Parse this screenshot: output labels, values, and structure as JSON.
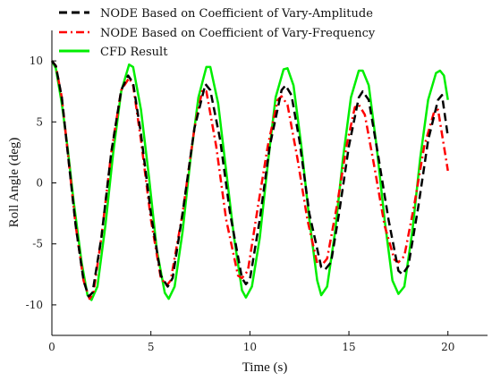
{
  "chart_data": {
    "type": "line",
    "xlabel": "Time (s)",
    "ylabel": "Roll Angle (deg)",
    "xlim": [
      0,
      22
    ],
    "ylim": [
      -12.5,
      12.5
    ],
    "xticks": [
      0,
      5,
      10,
      15,
      20
    ],
    "yticks": [
      -10,
      -5,
      0,
      5,
      10
    ],
    "legend_position": "top-left",
    "grid": false,
    "series": [
      {
        "name": "NODE Based on Coefficient of Vary-Amplitude",
        "color": "#000000",
        "style": "dash",
        "x": [
          0,
          0.2,
          0.5,
          0.8,
          1.2,
          1.6,
          1.85,
          2.05,
          2.5,
          3.0,
          3.5,
          3.85,
          4.1,
          4.5,
          5.0,
          5.5,
          5.85,
          6.1,
          6.6,
          7.2,
          7.75,
          8.0,
          8.5,
          9.0,
          9.6,
          9.8,
          10.0,
          10.5,
          11.0,
          11.6,
          11.8,
          12.1,
          12.5,
          13.0,
          13.6,
          13.8,
          14.1,
          14.5,
          15.0,
          15.5,
          15.7,
          16.0,
          16.5,
          17.0,
          17.5,
          17.7,
          18.0,
          18.5,
          19.0,
          19.5,
          19.7,
          20.0
        ],
        "y": [
          10,
          9.6,
          7.0,
          2.5,
          -3.5,
          -8.0,
          -9.3,
          -9.0,
          -4.5,
          2.5,
          7.6,
          8.8,
          8.2,
          4.0,
          -2.5,
          -7.6,
          -8.5,
          -7.8,
          -2.5,
          4.5,
          8.1,
          7.6,
          3.5,
          -2.5,
          -7.8,
          -8.3,
          -7.9,
          -3.0,
          3.0,
          7.6,
          8.0,
          7.2,
          3.5,
          -2.5,
          -6.9,
          -7.1,
          -6.5,
          -2.5,
          3.0,
          7.0,
          7.5,
          6.8,
          2.0,
          -3.0,
          -7.2,
          -7.5,
          -6.8,
          -2.0,
          3.5,
          6.8,
          7.2,
          3.8
        ]
      },
      {
        "name": "NODE Based on Coefficient of Vary-Frequency",
        "color": "#ff0000",
        "style": "dashdot",
        "x": [
          0,
          0.2,
          0.5,
          0.8,
          1.2,
          1.6,
          1.9,
          2.1,
          2.5,
          3.0,
          3.5,
          3.9,
          4.1,
          4.5,
          5.0,
          5.5,
          5.8,
          6.0,
          6.6,
          7.2,
          7.6,
          7.8,
          8.3,
          8.8,
          9.4,
          9.6,
          9.9,
          10.4,
          10.9,
          11.4,
          11.6,
          11.9,
          12.4,
          12.9,
          13.4,
          13.6,
          13.9,
          14.4,
          14.9,
          15.3,
          15.5,
          15.8,
          16.3,
          16.8,
          17.3,
          17.5,
          17.8,
          18.3,
          18.8,
          19.3,
          19.5,
          20.0
        ],
        "y": [
          10,
          9.6,
          7.0,
          2.5,
          -3.5,
          -8.0,
          -9.5,
          -9.0,
          -4.5,
          2.5,
          7.6,
          8.6,
          8.0,
          3.5,
          -3.0,
          -7.8,
          -8.4,
          -8.0,
          -2.5,
          4.5,
          7.6,
          7.5,
          3.0,
          -3.0,
          -7.6,
          -7.8,
          -7.2,
          -2.0,
          3.0,
          6.8,
          7.1,
          6.4,
          2.0,
          -3.0,
          -6.6,
          -6.8,
          -6.2,
          -1.8,
          3.2,
          6.2,
          6.4,
          5.6,
          1.2,
          -3.5,
          -6.3,
          -6.5,
          -6.0,
          -1.8,
          3.0,
          5.8,
          6.0,
          1.0
        ]
      },
      {
        "name": "CFD Result",
        "color": "#00ee00",
        "style": "solid",
        "x": [
          0,
          0.2,
          0.5,
          0.8,
          1.1,
          1.5,
          1.8,
          2.0,
          2.3,
          2.7,
          3.1,
          3.5,
          3.9,
          4.1,
          4.5,
          4.9,
          5.3,
          5.7,
          5.9,
          6.2,
          6.6,
          7.0,
          7.4,
          7.8,
          8.0,
          8.4,
          8.8,
          9.2,
          9.6,
          9.8,
          10.1,
          10.5,
          10.9,
          11.3,
          11.7,
          11.9,
          12.2,
          12.6,
          13.0,
          13.4,
          13.6,
          13.9,
          14.3,
          14.7,
          15.1,
          15.5,
          15.7,
          16.0,
          16.4,
          16.8,
          17.2,
          17.5,
          17.8,
          18.2,
          18.6,
          19.0,
          19.4,
          19.6,
          19.8,
          20.0
        ],
        "y": [
          10,
          9.4,
          6.5,
          2.8,
          -1.5,
          -6.5,
          -9.2,
          -9.6,
          -8.5,
          -3.5,
          2.5,
          7.5,
          9.7,
          9.5,
          6.0,
          0.5,
          -5.5,
          -9.0,
          -9.5,
          -8.5,
          -4.0,
          2.0,
          7.0,
          9.5,
          9.5,
          6.5,
          1.0,
          -4.5,
          -8.8,
          -9.4,
          -8.5,
          -4.5,
          1.5,
          7.0,
          9.3,
          9.4,
          8.0,
          3.0,
          -3.0,
          -8.0,
          -9.2,
          -8.5,
          -4.0,
          2.0,
          7.0,
          9.2,
          9.2,
          8.0,
          3.0,
          -3.0,
          -8.0,
          -9.1,
          -8.5,
          -4.0,
          2.0,
          6.8,
          9.0,
          9.2,
          8.8,
          6.8
        ]
      }
    ]
  }
}
